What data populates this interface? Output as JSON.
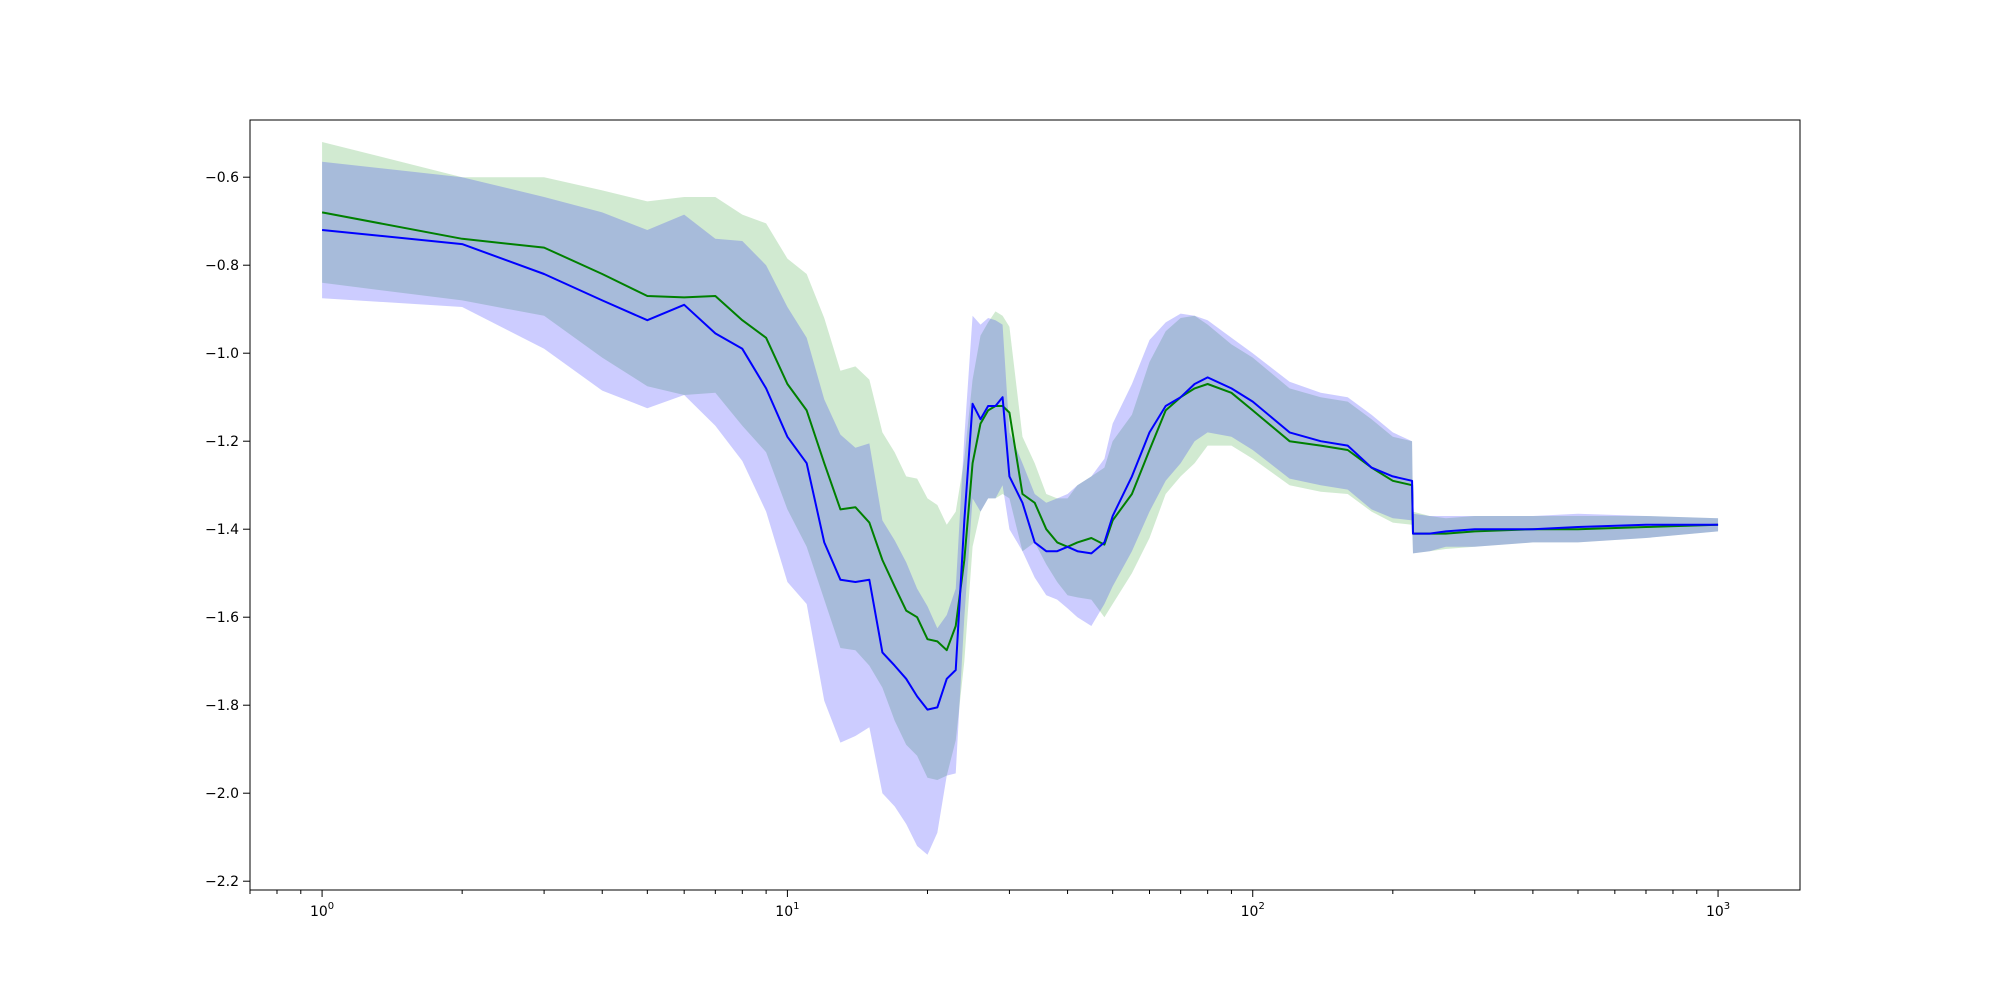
{
  "chart_data": {
    "type": "area",
    "title": "",
    "xlabel": "",
    "ylabel": "",
    "xscale": "log",
    "xlim": [
      0.7,
      1500
    ],
    "ylim": [
      -2.22,
      -0.47
    ],
    "grid": false,
    "legend": "none",
    "x_ticks": [
      {
        "value": 1,
        "base": "10",
        "exp": "0"
      },
      {
        "value": 10,
        "base": "10",
        "exp": "1"
      },
      {
        "value": 100,
        "base": "10",
        "exp": "2"
      },
      {
        "value": 1000,
        "base": "10",
        "exp": "3"
      }
    ],
    "y_ticks": [
      {
        "value": -0.6,
        "label": "−0.6"
      },
      {
        "value": -0.8,
        "label": "−0.8"
      },
      {
        "value": -1.0,
        "label": "−1.0"
      },
      {
        "value": -1.2,
        "label": "−1.2"
      },
      {
        "value": -1.4,
        "label": "−1.4"
      },
      {
        "value": -1.6,
        "label": "−1.6"
      },
      {
        "value": -1.8,
        "label": "−1.8"
      },
      {
        "value": -2.0,
        "label": "−2.0"
      },
      {
        "value": -2.2,
        "label": "−2.2"
      }
    ],
    "series": [
      {
        "color": "#008000",
        "band_color": "#2ca02c",
        "band_opacity": 0.22,
        "x": [
          1,
          2,
          3,
          4,
          5,
          6,
          7,
          8,
          9,
          10,
          11,
          12,
          13,
          14,
          15,
          16,
          17,
          18,
          19,
          20,
          21,
          22,
          23,
          24,
          25,
          26,
          27,
          28,
          29,
          30,
          32,
          34,
          36,
          38,
          40,
          42,
          45,
          48,
          50,
          55,
          60,
          65,
          70,
          75,
          80,
          90,
          100,
          120,
          140,
          160,
          180,
          200,
          220,
          221,
          240,
          260,
          300,
          400,
          500,
          700,
          1000
        ],
        "mean": [
          -0.68,
          -0.74,
          -0.76,
          -0.82,
          -0.87,
          -0.873,
          -0.87,
          -0.925,
          -0.965,
          -1.07,
          -1.13,
          -1.25,
          -1.355,
          -1.35,
          -1.385,
          -1.47,
          -1.53,
          -1.585,
          -1.6,
          -1.65,
          -1.655,
          -1.675,
          -1.62,
          -1.47,
          -1.25,
          -1.16,
          -1.13,
          -1.12,
          -1.12,
          -1.135,
          -1.32,
          -1.34,
          -1.4,
          -1.43,
          -1.44,
          -1.43,
          -1.42,
          -1.435,
          -1.38,
          -1.32,
          -1.22,
          -1.13,
          -1.1,
          -1.08,
          -1.07,
          -1.09,
          -1.13,
          -1.2,
          -1.21,
          -1.22,
          -1.26,
          -1.29,
          -1.3,
          -1.41,
          -1.41,
          -1.41,
          -1.405,
          -1.4,
          -1.4,
          -1.395,
          -1.39
        ],
        "upper": [
          -0.52,
          -0.6,
          -0.6,
          -0.63,
          -0.655,
          -0.645,
          -0.645,
          -0.685,
          -0.705,
          -0.785,
          -0.82,
          -0.92,
          -1.04,
          -1.03,
          -1.06,
          -1.18,
          -1.225,
          -1.28,
          -1.285,
          -1.33,
          -1.345,
          -1.39,
          -1.36,
          -1.24,
          -1.06,
          -0.96,
          -0.93,
          -0.905,
          -0.915,
          -0.94,
          -1.19,
          -1.25,
          -1.32,
          -1.33,
          -1.33,
          -1.3,
          -1.28,
          -1.26,
          -1.2,
          -1.14,
          -1.02,
          -0.95,
          -0.92,
          -0.915,
          -0.935,
          -0.98,
          -1.01,
          -1.08,
          -1.1,
          -1.11,
          -1.15,
          -1.19,
          -1.2,
          -1.36,
          -1.37,
          -1.375,
          -1.37,
          -1.37,
          -1.37,
          -1.37,
          -1.375
        ],
        "lower": [
          -0.84,
          -0.88,
          -0.915,
          -1.01,
          -1.075,
          -1.095,
          -1.09,
          -1.165,
          -1.225,
          -1.355,
          -1.44,
          -1.56,
          -1.67,
          -1.675,
          -1.71,
          -1.76,
          -1.835,
          -1.89,
          -1.915,
          -1.965,
          -1.97,
          -1.96,
          -1.88,
          -1.7,
          -1.44,
          -1.36,
          -1.33,
          -1.33,
          -1.32,
          -1.33,
          -1.45,
          -1.43,
          -1.48,
          -1.52,
          -1.55,
          -1.555,
          -1.56,
          -1.6,
          -1.57,
          -1.5,
          -1.42,
          -1.32,
          -1.28,
          -1.25,
          -1.21,
          -1.21,
          -1.24,
          -1.3,
          -1.315,
          -1.32,
          -1.36,
          -1.385,
          -1.39,
          -1.455,
          -1.45,
          -1.445,
          -1.44,
          -1.43,
          -1.43,
          -1.42,
          -1.405
        ]
      },
      {
        "color": "#0000ff",
        "band_color": "#0000ff",
        "band_opacity": 0.2,
        "x": [
          1,
          2,
          3,
          4,
          5,
          6,
          7,
          8,
          9,
          10,
          11,
          12,
          13,
          14,
          15,
          16,
          17,
          18,
          19,
          20,
          21,
          22,
          23,
          24,
          25,
          26,
          27,
          28,
          29,
          30,
          32,
          34,
          36,
          38,
          40,
          42,
          45,
          48,
          50,
          55,
          60,
          65,
          70,
          75,
          80,
          90,
          100,
          120,
          140,
          160,
          180,
          200,
          220,
          221,
          240,
          260,
          300,
          400,
          500,
          700,
          1000
        ],
        "mean": [
          -0.72,
          -0.752,
          -0.82,
          -0.88,
          -0.925,
          -0.89,
          -0.955,
          -0.99,
          -1.08,
          -1.19,
          -1.25,
          -1.43,
          -1.515,
          -1.52,
          -1.515,
          -1.68,
          -1.71,
          -1.74,
          -1.78,
          -1.81,
          -1.805,
          -1.74,
          -1.72,
          -1.38,
          -1.115,
          -1.15,
          -1.12,
          -1.12,
          -1.1,
          -1.28,
          -1.34,
          -1.43,
          -1.45,
          -1.45,
          -1.44,
          -1.45,
          -1.455,
          -1.43,
          -1.37,
          -1.28,
          -1.18,
          -1.12,
          -1.1,
          -1.07,
          -1.055,
          -1.08,
          -1.11,
          -1.18,
          -1.2,
          -1.21,
          -1.26,
          -1.28,
          -1.29,
          -1.41,
          -1.41,
          -1.405,
          -1.4,
          -1.4,
          -1.395,
          -1.39,
          -1.39
        ],
        "upper": [
          -0.565,
          -0.6,
          -0.645,
          -0.68,
          -0.72,
          -0.685,
          -0.74,
          -0.745,
          -0.8,
          -0.895,
          -0.965,
          -1.105,
          -1.185,
          -1.215,
          -1.205,
          -1.38,
          -1.425,
          -1.475,
          -1.535,
          -1.575,
          -1.625,
          -1.595,
          -1.535,
          -1.19,
          -0.915,
          -0.935,
          -0.92,
          -0.925,
          -0.935,
          -1.18,
          -1.25,
          -1.32,
          -1.34,
          -1.33,
          -1.32,
          -1.3,
          -1.28,
          -1.24,
          -1.16,
          -1.07,
          -0.97,
          -0.93,
          -0.91,
          -0.915,
          -0.925,
          -0.965,
          -1.0,
          -1.065,
          -1.09,
          -1.1,
          -1.14,
          -1.18,
          -1.2,
          -1.365,
          -1.37,
          -1.37,
          -1.37,
          -1.37,
          -1.365,
          -1.37,
          -1.375
        ],
        "lower": [
          -0.875,
          -0.895,
          -0.99,
          -1.085,
          -1.125,
          -1.095,
          -1.165,
          -1.245,
          -1.36,
          -1.52,
          -1.57,
          -1.79,
          -1.885,
          -1.87,
          -1.85,
          -2.0,
          -2.03,
          -2.07,
          -2.12,
          -2.14,
          -2.09,
          -1.96,
          -1.955,
          -1.6,
          -1.33,
          -1.36,
          -1.33,
          -1.33,
          -1.3,
          -1.4,
          -1.45,
          -1.51,
          -1.55,
          -1.56,
          -1.58,
          -1.6,
          -1.62,
          -1.57,
          -1.53,
          -1.45,
          -1.36,
          -1.29,
          -1.25,
          -1.2,
          -1.18,
          -1.19,
          -1.22,
          -1.285,
          -1.3,
          -1.31,
          -1.355,
          -1.375,
          -1.38,
          -1.455,
          -1.45,
          -1.44,
          -1.44,
          -1.43,
          -1.43,
          -1.42,
          -1.405
        ]
      }
    ]
  }
}
